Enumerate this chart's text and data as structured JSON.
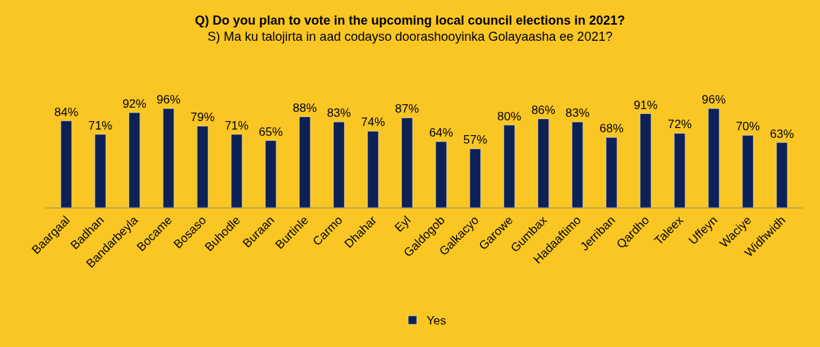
{
  "chart_data": {
    "type": "bar",
    "title": "Q) Do you plan to vote in the upcoming local council elections in 2021?",
    "subtitle": "S) Ma ku talojirta in aad codayso doorashooyinka Golayaasha ee 2021?",
    "categories": [
      "Baargaal",
      "Badhan",
      "Bandarbeyla",
      "Bocame",
      "Bosaso",
      "Buhodle",
      "Buraan",
      "Burtinle",
      "Carmo",
      "Dhahar",
      "Eyl",
      "Galdogob",
      "Galkacyo",
      "Garowe",
      "Gumbax",
      "Hadaaftimo",
      "Jerriban",
      "Qardho",
      "Taleex",
      "Uffeyn",
      "Waciye",
      "Widhwidh"
    ],
    "series": [
      {
        "name": "Yes",
        "color": "#0d2157",
        "values": [
          84,
          71,
          92,
          96,
          79,
          71,
          65,
          88,
          83,
          74,
          87,
          64,
          57,
          80,
          86,
          83,
          68,
          91,
          72,
          96,
          70,
          63
        ],
        "value_labels": [
          "84%",
          "71%",
          "92%",
          "96%",
          "79%",
          "71%",
          "65%",
          "88%",
          "83%",
          "74%",
          "87%",
          "64%",
          "57%",
          "80%",
          "86%",
          "83%",
          "68%",
          "91%",
          "72%",
          "96%",
          "70%",
          "63%"
        ]
      }
    ],
    "legend": "bottom"
  }
}
